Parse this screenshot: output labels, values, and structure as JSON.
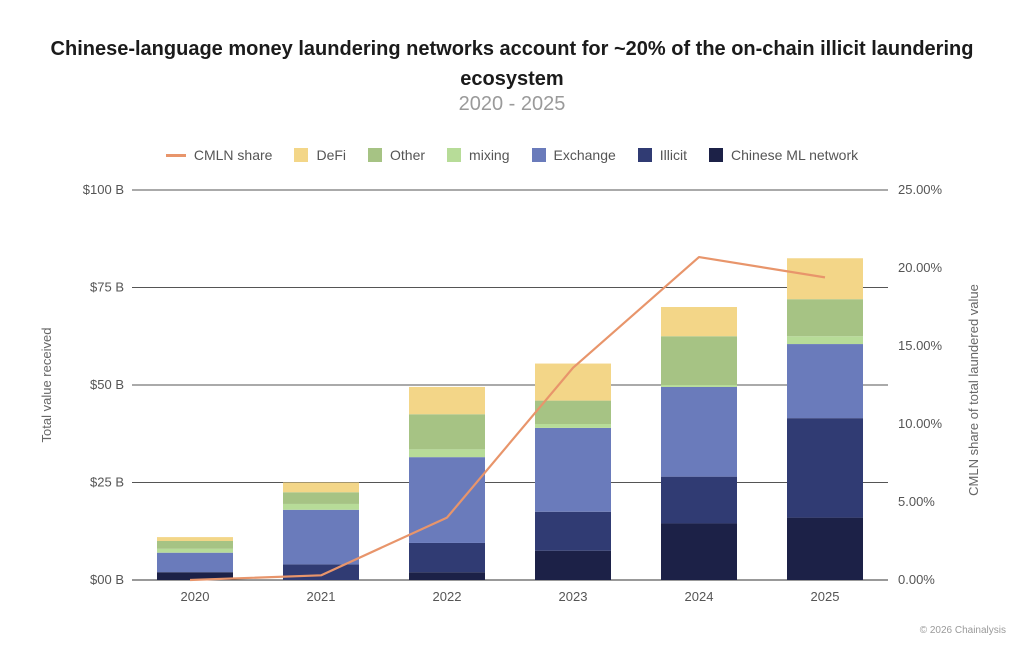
{
  "chart_data": {
    "type": "bar",
    "stacked": true,
    "title": "Chinese-language money laundering networks account for ~20% of the on-chain illicit laundering ecosystem",
    "subtitle": "2020 - 2025",
    "categories": [
      "2020",
      "2021",
      "2022",
      "2023",
      "2024",
      "2025"
    ],
    "ylabel": "Total value received",
    "y2label": "CMLN share of total laundered value",
    "ylim": [
      0,
      100
    ],
    "y2lim": [
      0,
      25
    ],
    "yticks": [
      "$00 B",
      "$25 B",
      "$50 B",
      "$75 B",
      "$100 B"
    ],
    "y2ticks": [
      "0.00%",
      "5.00%",
      "10.00%",
      "15.00%",
      "20.00%",
      "25.00%"
    ],
    "grid": true,
    "legend_position": "top",
    "series": [
      {
        "name": "Chinese ML network",
        "color": "#1c2147",
        "values": [
          2,
          0,
          2,
          7.5,
          14.5,
          16
        ]
      },
      {
        "name": "Illicit",
        "color": "#303b73",
        "values": [
          0,
          4,
          7.5,
          10,
          12,
          25.5
        ]
      },
      {
        "name": "Exchange",
        "color": "#6a7bbb",
        "values": [
          5,
          14,
          22,
          21.5,
          23,
          19
        ]
      },
      {
        "name": "mixing",
        "color": "#b7dc98",
        "values": [
          1,
          1.5,
          2,
          1,
          0.5,
          2
        ]
      },
      {
        "name": "Other",
        "color": "#a6c384",
        "values": [
          2,
          3,
          9,
          6,
          12.5,
          9.5
        ]
      },
      {
        "name": "DeFi",
        "color": "#f3d688",
        "values": [
          1,
          2.5,
          7,
          9.5,
          7.5,
          10.5
        ]
      }
    ],
    "line_series": {
      "name": "CMLN share",
      "color": "#e8956b",
      "axis": "right",
      "values": [
        0.0,
        0.3,
        4.0,
        13.6,
        20.7,
        19.4
      ]
    }
  },
  "legend": [
    {
      "label": "CMLN share",
      "kind": "line",
      "color": "#e8956b"
    },
    {
      "label": "DeFi",
      "kind": "box",
      "color": "#f3d688"
    },
    {
      "label": "Other",
      "kind": "box",
      "color": "#a6c384"
    },
    {
      "label": "mixing",
      "kind": "box",
      "color": "#b7dc98"
    },
    {
      "label": "Exchange",
      "kind": "box",
      "color": "#6a7bbb"
    },
    {
      "label": "Illicit",
      "kind": "box",
      "color": "#303b73"
    },
    {
      "label": "Chinese ML network",
      "kind": "box",
      "color": "#1c2147"
    }
  ],
  "footer": "© 2026 Chainalysis"
}
